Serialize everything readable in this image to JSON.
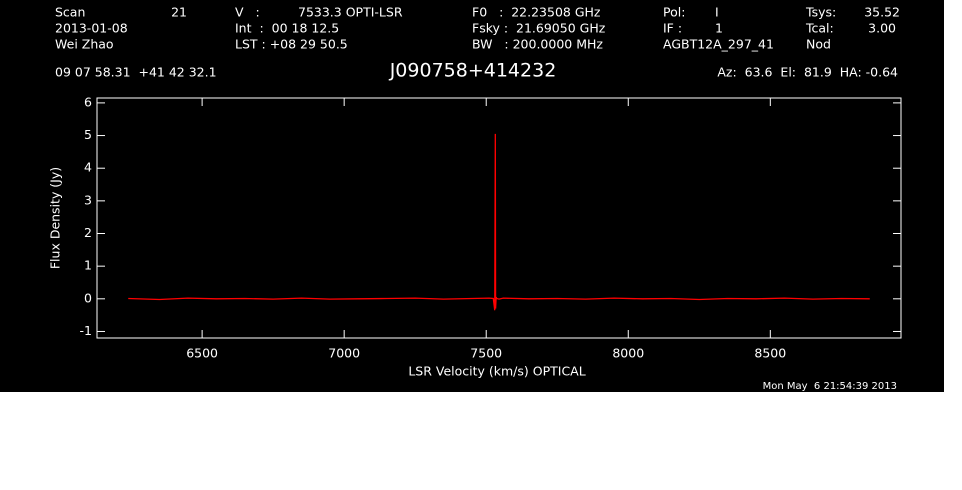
{
  "header": {
    "row1": [
      "Scan",
      "21",
      "V   :",
      "7533.3 OPTI-LSR",
      "F0   :  22.23508 GHz",
      "Pol:",
      "I",
      "Tsys:",
      "35.52"
    ],
    "row2": [
      "2013-01-08",
      "Int  :  00 18 12.5",
      "Fsky :  21.69050 GHz",
      "IF :",
      "1",
      "Tcal:",
      "3.00"
    ],
    "row3": [
      "Wei Zhao",
      "LST : +08 29 50.5",
      "BW   : 200.0000 MHz",
      "AGBT12A_297_41",
      "Nod"
    ],
    "coords": "09 07 58.31  +41 42 32.1",
    "source": "J090758+414232",
    "pointing": "Az:  63.6  El:  81.9  HA: -0.64",
    "timestamp": "Mon May  6 21:54:39 2013"
  },
  "chart_data": {
    "type": "line",
    "x_label": "LSR Velocity (km/s) OPTICAL",
    "y_label": "Flux Density (Jy)",
    "xlim": [
      6130,
      8960
    ],
    "ylim": [
      -1.2,
      6.15
    ],
    "xticks": [
      6500,
      7000,
      7500,
      8000,
      8500
    ],
    "yticks": [
      -1,
      0,
      1,
      2,
      3,
      4,
      5,
      6
    ],
    "series": [
      {
        "color": "#ff0000",
        "x": [
          6240,
          6350,
          6450,
          6550,
          6650,
          6750,
          6850,
          6950,
          7050,
          7150,
          7250,
          7350,
          7450,
          7510,
          7525,
          7530,
          7532,
          7533,
          7535,
          7537,
          7545,
          7560,
          7650,
          7750,
          7850,
          7950,
          8050,
          8150,
          8250,
          8350,
          8450,
          8550,
          8650,
          8750,
          8850
        ],
        "values": [
          0.01,
          -0.02,
          0.02,
          0,
          0.01,
          -0.01,
          0.02,
          -0.01,
          0,
          0.01,
          0.02,
          -0.01,
          0.01,
          0.02,
          0.01,
          -0.35,
          5.05,
          -0.3,
          0.05,
          0.01,
          -0.01,
          0.02,
          0,
          0.01,
          -0.01,
          0.02,
          0,
          0.01,
          -0.02,
          0.01,
          0,
          0.02,
          -0.01,
          0.01,
          0
        ]
      }
    ]
  }
}
